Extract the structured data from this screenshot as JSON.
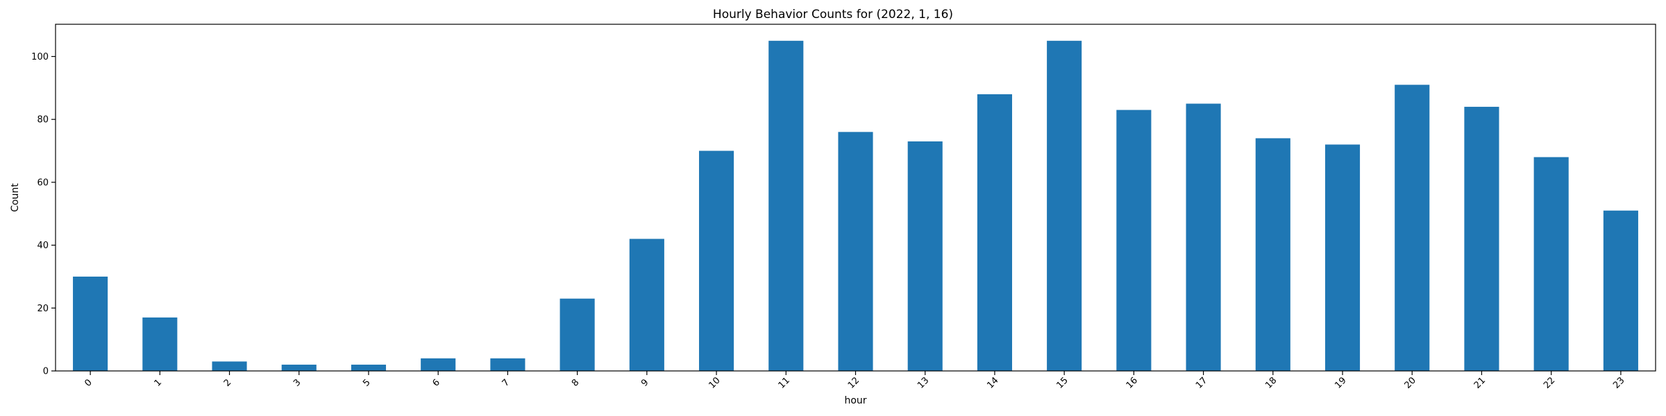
{
  "chart_data": {
    "type": "bar",
    "title": "Hourly Behavior Counts for (2022, 1, 16)",
    "xlabel": "hour",
    "ylabel": "Count",
    "categories": [
      "0",
      "1",
      "2",
      "3",
      "5",
      "6",
      "7",
      "8",
      "9",
      "10",
      "11",
      "12",
      "13",
      "14",
      "15",
      "16",
      "17",
      "18",
      "19",
      "20",
      "21",
      "22",
      "23"
    ],
    "values": [
      30,
      17,
      3,
      2,
      2,
      4,
      4,
      23,
      42,
      70,
      105,
      76,
      73,
      88,
      105,
      83,
      85,
      74,
      72,
      91,
      84,
      68,
      51
    ],
    "ylim": [
      0,
      110.25
    ],
    "yticks": [
      0,
      20,
      40,
      60,
      80,
      100
    ],
    "bar_color": "#1f77b4",
    "grid": false,
    "legend": "none"
  }
}
